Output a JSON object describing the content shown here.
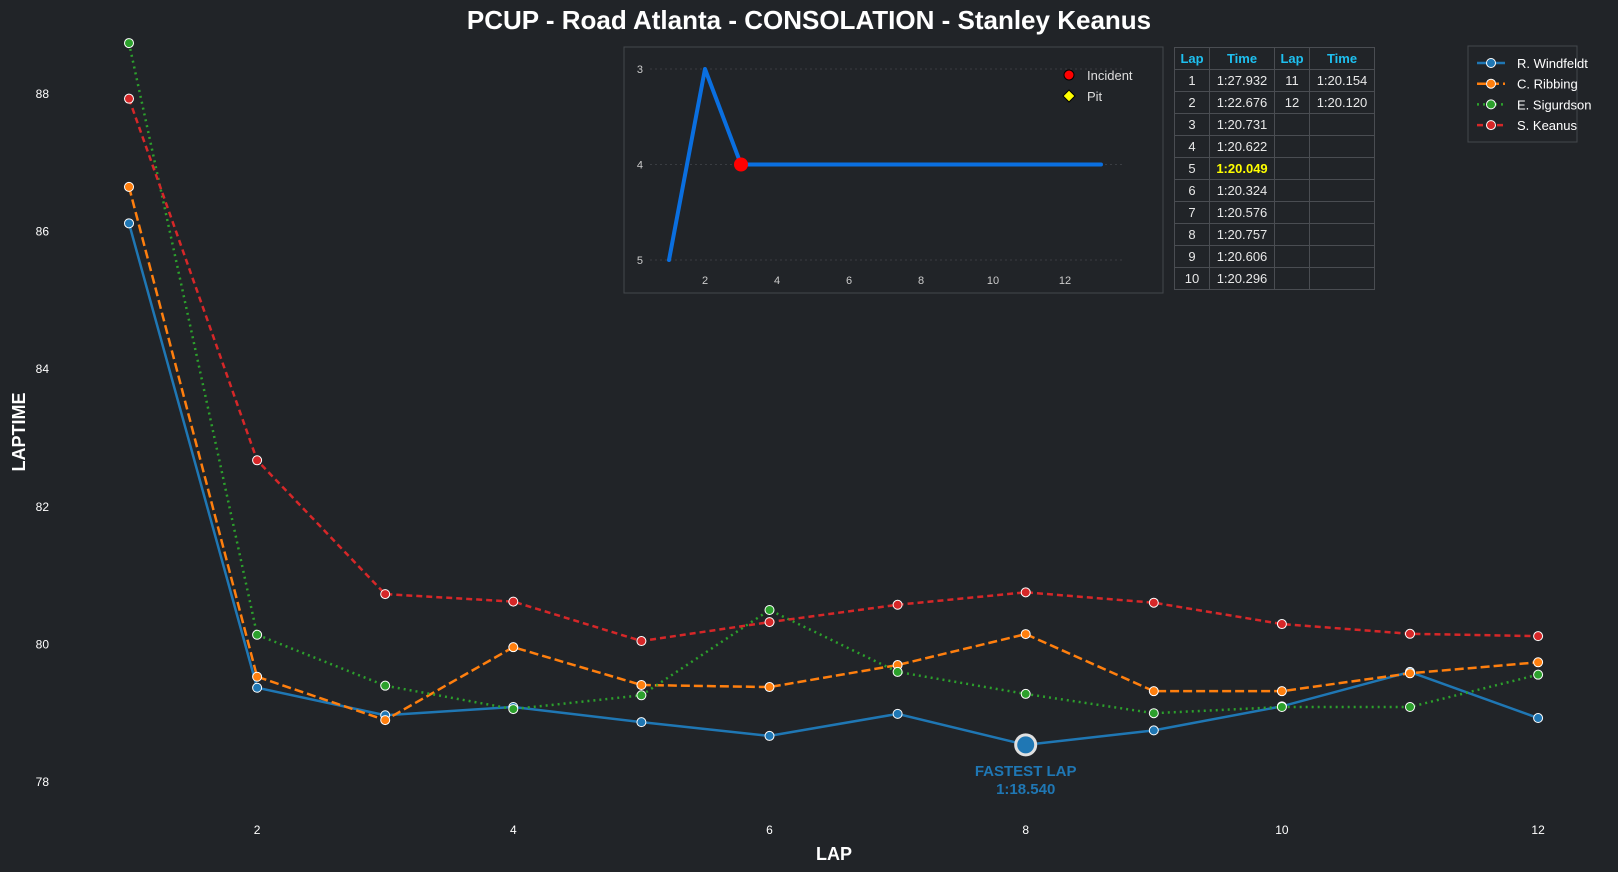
{
  "chart_data": [
    {
      "type": "line",
      "title": "PCUP - Road Atlanta - CONSOLATION - Stanley Keanus",
      "xlabel": "LAP",
      "ylabel": "LAPTIME",
      "x": [
        1,
        2,
        3,
        4,
        5,
        6,
        7,
        8,
        9,
        10,
        11,
        12
      ],
      "xticks": [
        2,
        4,
        6,
        8,
        10,
        12
      ],
      "yticks": [
        78,
        80,
        82,
        84,
        86,
        88
      ],
      "xlim": [
        0.5,
        12.6
      ],
      "ylim": [
        77.74,
        88.78
      ],
      "grid": false,
      "legend_placement": "top-right",
      "series": [
        {
          "name": "R. Windfeldt",
          "color": "#1f77b4",
          "style": "solid",
          "values": [
            86.12,
            79.37,
            78.97,
            79.09,
            78.87,
            78.67,
            78.99,
            78.54,
            78.75,
            79.1,
            79.6,
            78.93
          ]
        },
        {
          "name": "C. Ribbing",
          "color": "#ff7f0e",
          "style": "dashed",
          "values": [
            86.65,
            79.53,
            78.9,
            79.96,
            79.41,
            79.38,
            79.7,
            80.15,
            79.32,
            79.32,
            79.58,
            79.74
          ]
        },
        {
          "name": "E. Sigurdson",
          "color": "#2ca02c",
          "style": "dotted",
          "values": [
            88.74,
            80.14,
            79.4,
            79.06,
            79.26,
            80.5,
            79.6,
            79.28,
            79.0,
            79.09,
            79.09,
            79.56
          ]
        },
        {
          "name": "S. Keanus",
          "color": "#d62728",
          "style": "dashdot",
          "values": [
            87.932,
            82.676,
            80.731,
            80.622,
            80.049,
            80.324,
            80.576,
            80.757,
            80.606,
            80.296,
            80.154,
            80.12
          ]
        }
      ],
      "annotation": {
        "label": "FASTEST LAP",
        "value": "1:18.540",
        "lap": 8,
        "laptime": 78.54,
        "color": "#1f77b4"
      }
    },
    {
      "type": "line",
      "title": "",
      "x": [
        1,
        2,
        3,
        4,
        5,
        6,
        7,
        8,
        9,
        10,
        11,
        12,
        13
      ],
      "values": [
        5,
        3,
        4,
        4,
        4,
        4,
        4,
        4,
        4,
        4,
        4,
        4,
        4
      ],
      "xticks": [
        2,
        4,
        6,
        8,
        10,
        12
      ],
      "yticks": [
        3,
        4,
        5
      ],
      "ylim": [
        5,
        3
      ],
      "inverted_y": true,
      "color": "#0a6fe0",
      "legend": [
        {
          "name": "Incident",
          "marker": "circle",
          "color": "#ff0000"
        },
        {
          "name": "Pit",
          "marker": "diamond",
          "color": "#ffff00"
        }
      ],
      "incidents": [
        {
          "x": 3,
          "y": 4
        }
      ],
      "pits": []
    }
  ],
  "lap_table": {
    "headers": [
      "Lap",
      "Time",
      "Lap",
      "Time"
    ],
    "rows": [
      [
        "1",
        "1:27.932",
        "11",
        "1:20.154"
      ],
      [
        "2",
        "1:22.676",
        "12",
        "1:20.120"
      ],
      [
        "3",
        "1:20.731",
        "",
        ""
      ],
      [
        "4",
        "1:20.622",
        "",
        ""
      ],
      [
        "5",
        "1:20.049",
        "",
        ""
      ],
      [
        "6",
        "1:20.324",
        "",
        ""
      ],
      [
        "7",
        "1:20.576",
        "",
        ""
      ],
      [
        "8",
        "1:20.757",
        "",
        ""
      ],
      [
        "9",
        "1:20.606",
        "",
        ""
      ],
      [
        "10",
        "1:20.296",
        "",
        ""
      ]
    ],
    "best_lap_row": 4,
    "best_color": "#ffff00"
  }
}
